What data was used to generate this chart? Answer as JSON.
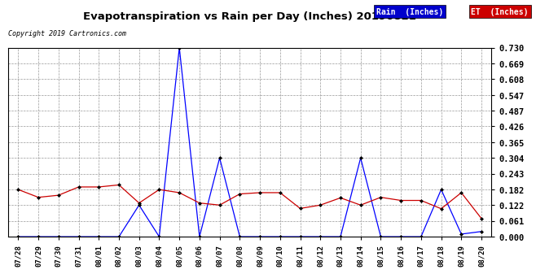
{
  "title": "Evapotranspiration vs Rain per Day (Inches) 20190821",
  "copyright": "Copyright 2019 Cartronics.com",
  "x_labels": [
    "07/28",
    "07/29",
    "07/30",
    "07/31",
    "08/01",
    "08/02",
    "08/03",
    "08/04",
    "08/05",
    "08/06",
    "08/07",
    "08/08",
    "08/09",
    "08/10",
    "08/11",
    "08/12",
    "08/13",
    "08/14",
    "08/15",
    "08/16",
    "08/17",
    "08/18",
    "08/19",
    "08/20"
  ],
  "rain": [
    0.0,
    0.0,
    0.0,
    0.0,
    0.0,
    0.0,
    0.122,
    0.0,
    0.73,
    0.0,
    0.304,
    0.0,
    0.0,
    0.0,
    0.0,
    0.0,
    0.0,
    0.304,
    0.0,
    0.0,
    0.0,
    0.182,
    0.01,
    0.02
  ],
  "et": [
    0.182,
    0.152,
    0.16,
    0.192,
    0.192,
    0.2,
    0.13,
    0.182,
    0.17,
    0.13,
    0.122,
    0.165,
    0.17,
    0.17,
    0.109,
    0.122,
    0.15,
    0.122,
    0.152,
    0.14,
    0.14,
    0.108,
    0.17,
    0.07
  ],
  "rain_color": "#0000ff",
  "et_color": "#cc0000",
  "background_color": "#ffffff",
  "grid_color": "#999999",
  "ylim": [
    0.0,
    0.73
  ],
  "yticks": [
    0.0,
    0.061,
    0.122,
    0.182,
    0.243,
    0.304,
    0.365,
    0.426,
    0.487,
    0.547,
    0.608,
    0.669,
    0.73
  ],
  "legend_rain_bg": "#0000cc",
  "legend_et_bg": "#cc0000",
  "legend_rain_text": "Rain  (Inches)",
  "legend_et_text": "ET  (Inches)"
}
